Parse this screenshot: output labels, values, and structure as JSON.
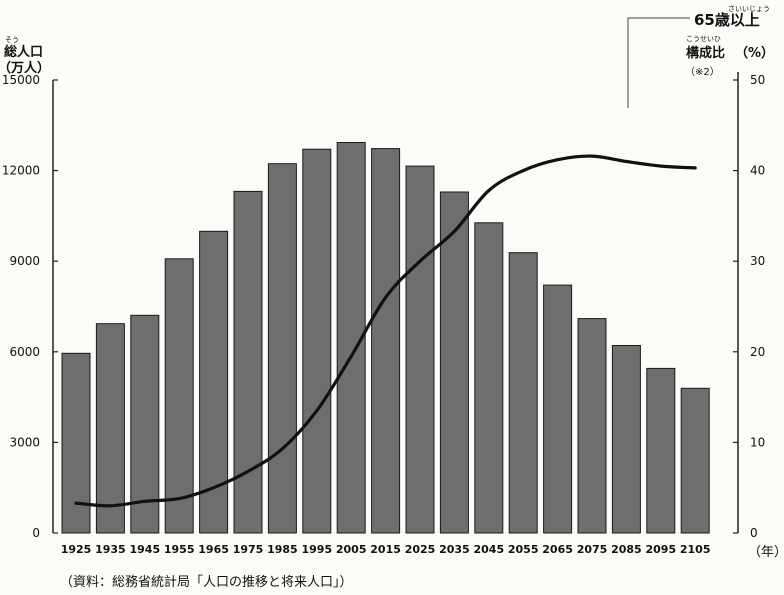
{
  "chart_data": {
    "type": "bar",
    "left_axis": {
      "label": "総人口",
      "label_ruby": "そう",
      "unit": "（万人）",
      "ylim": [
        0,
        15000
      ],
      "ticks": [
        "0",
        "3000",
        "6000",
        "9000",
        "12000",
        "15000"
      ]
    },
    "right_axis": {
      "title": "65歳以上",
      "title_ruby": "さいいじょう",
      "label": "構成比",
      "label_ruby": "こうせいひ",
      "unit": "（%）",
      "note": "（※2）",
      "ylim": [
        0,
        50
      ],
      "ticks": [
        "0",
        "10",
        "20",
        "30",
        "40",
        "50"
      ]
    },
    "x_unit": "（年）",
    "categories": [
      "1925",
      "1935",
      "1945",
      "1955",
      "1965",
      "1975",
      "1985",
      "1995",
      "2005",
      "2015",
      "2025",
      "2035",
      "2045",
      "2055",
      "2065",
      "2075",
      "2085",
      "2095",
      "2105"
    ],
    "series": [
      {
        "type": "bar",
        "axis": "left",
        "values": [
          5950,
          6930,
          7210,
          9080,
          9990,
          11310,
          12230,
          12710,
          12930,
          12730,
          12150,
          11290,
          10270,
          9280,
          8210,
          7100,
          6210,
          5450,
          4790
        ]
      },
      {
        "type": "line",
        "axis": "right",
        "values": [
          3.3,
          3.0,
          3.5,
          3.8,
          5.0,
          6.8,
          9.3,
          13.5,
          19.5,
          26.0,
          30.0,
          33.3,
          37.8,
          40.0,
          41.2,
          41.6,
          41.0,
          40.5,
          40.3
        ]
      }
    ],
    "grid": false,
    "source": "（資料：総務省統計局「人口の推移と将来人口」）"
  }
}
